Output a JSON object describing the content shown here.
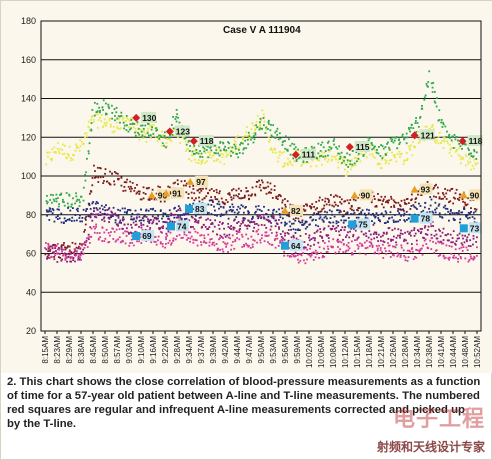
{
  "chart_data": {
    "type": "scatter",
    "annotation": "Case V A 111904",
    "x_ticks": [
      "8:15AM",
      "8:23AM",
      "8:29AM",
      "8:38AM",
      "8:45AM",
      "8:50AM",
      "8:57AM",
      "9:03AM",
      "9:10AM",
      "9:16AM",
      "9:22AM",
      "9:28AM",
      "9:34AM",
      "9:37AM",
      "9:39AM",
      "9:42AM",
      "9:44AM",
      "9:47AM",
      "9:50AM",
      "9:53AM",
      "9:56AM",
      "9:59AM",
      "10:02AM",
      "10:06AM",
      "10:08AM",
      "10:12AM",
      "10:15AM",
      "10:18AM",
      "10:21AM",
      "10:26AM",
      "10:28AM",
      "10:34AM",
      "10:38AM",
      "10:41AM",
      "10:44AM",
      "10:48AM",
      "10:52AM"
    ],
    "ylim": [
      20,
      180
    ],
    "y_ticks": [
      20,
      40,
      60,
      80,
      100,
      120,
      140,
      160,
      180
    ],
    "grid": true,
    "series": [
      {
        "color": "#e8e84a",
        "values": [
          108,
          115,
          112,
          116,
          130,
          128,
          126,
          130,
          120,
          124,
          118,
          124,
          112,
          110,
          112,
          110,
          118,
          124,
          132,
          112,
          108,
          110,
          108,
          110,
          112,
          104,
          110,
          115,
          108,
          112,
          110,
          120,
          124,
          118,
          114,
          108,
          106
        ]
      },
      {
        "color": "#2ea84a",
        "values": [
          88,
          88,
          88,
          88,
          135,
          136,
          132,
          126,
          124,
          126,
          118,
          132,
          116,
          114,
          114,
          116,
          112,
          120,
          128,
          124,
          118,
          110,
          112,
          114,
          116,
          108,
          112,
          118,
          112,
          118,
          120,
          128,
          152,
          126,
          118,
          116,
          112
        ]
      },
      {
        "color": "#7a1a1a",
        "values": [
          62,
          62,
          62,
          62,
          102,
          100,
          98,
          94,
          92,
          92,
          90,
          96,
          92,
          90,
          90,
          88,
          92,
          92,
          96,
          92,
          84,
          80,
          84,
          86,
          88,
          84,
          86,
          90,
          86,
          88,
          86,
          90,
          94,
          92,
          90,
          88,
          86
        ]
      },
      {
        "color": "#1e2a7a",
        "values": [
          80,
          80,
          80,
          80,
          84,
          82,
          80,
          80,
          80,
          80,
          78,
          82,
          82,
          84,
          84,
          82,
          82,
          80,
          82,
          80,
          78,
          74,
          76,
          78,
          80,
          78,
          80,
          80,
          78,
          80,
          80,
          82,
          86,
          82,
          80,
          80,
          80
        ]
      },
      {
        "color": "#8a1a7a",
        "values": [
          60,
          60,
          60,
          60,
          82,
          80,
          78,
          74,
          76,
          78,
          74,
          80,
          78,
          76,
          74,
          72,
          76,
          74,
          78,
          76,
          70,
          66,
          68,
          70,
          72,
          70,
          72,
          72,
          70,
          70,
          68,
          70,
          74,
          70,
          68,
          68,
          68
        ]
      },
      {
        "color": "#d43a9a",
        "values": [
          62,
          62,
          60,
          60,
          72,
          70,
          70,
          68,
          68,
          70,
          66,
          72,
          70,
          68,
          66,
          64,
          68,
          66,
          70,
          68,
          62,
          58,
          60,
          62,
          64,
          62,
          64,
          64,
          62,
          62,
          60,
          62,
          66,
          62,
          60,
          60,
          60
        ]
      }
    ],
    "annotations": [
      {
        "label": "130",
        "x": 7.6,
        "y": 130,
        "marker": "red-diamond"
      },
      {
        "label": "123",
        "x": 10.4,
        "y": 123,
        "marker": "red-diamond"
      },
      {
        "label": "118",
        "x": 12.4,
        "y": 118,
        "marker": "red-diamond"
      },
      {
        "label": "111",
        "x": 20.9,
        "y": 111,
        "marker": "red-diamond"
      },
      {
        "label": "115",
        "x": 25.4,
        "y": 115,
        "marker": "red-diamond"
      },
      {
        "label": "121",
        "x": 30.8,
        "y": 121,
        "marker": "red-diamond"
      },
      {
        "label": "118",
        "x": 34.8,
        "y": 118,
        "marker": "red-diamond"
      },
      {
        "label": "90",
        "x": 8.9,
        "y": 90,
        "marker": "orange-triangle"
      },
      {
        "label": "91",
        "x": 10.1,
        "y": 91,
        "marker": "orange-triangle"
      },
      {
        "label": "97",
        "x": 12.1,
        "y": 97,
        "marker": "orange-triangle"
      },
      {
        "label": "82",
        "x": 20.0,
        "y": 82,
        "marker": "orange-triangle"
      },
      {
        "label": "90",
        "x": 25.8,
        "y": 90,
        "marker": "orange-triangle"
      },
      {
        "label": "93",
        "x": 30.8,
        "y": 93,
        "marker": "orange-triangle"
      },
      {
        "label": "90",
        "x": 34.9,
        "y": 90,
        "marker": "orange-triangle"
      },
      {
        "label": "69",
        "x": 7.6,
        "y": 69,
        "marker": "blue-square"
      },
      {
        "label": "74",
        "x": 10.5,
        "y": 74,
        "marker": "blue-square"
      },
      {
        "label": "83",
        "x": 12.0,
        "y": 83,
        "marker": "blue-square"
      },
      {
        "label": "64",
        "x": 20.0,
        "y": 64,
        "marker": "blue-square"
      },
      {
        "label": "75",
        "x": 25.6,
        "y": 75,
        "marker": "blue-square"
      },
      {
        "label": "78",
        "x": 30.8,
        "y": 78,
        "marker": "blue-square"
      },
      {
        "label": "73",
        "x": 34.9,
        "y": 73,
        "marker": "blue-square"
      }
    ]
  },
  "caption": "2. This chart shows the close correlation of blood-pressure measurements as a function of time for a 57-year old patient between A-line and T-line measurements. The numbered red squares are regular and infrequent A-line measurements corrected and picked up by the T-line.",
  "watermark": {
    "logo": "电子工程",
    "text": "射频和天线设计专家"
  }
}
